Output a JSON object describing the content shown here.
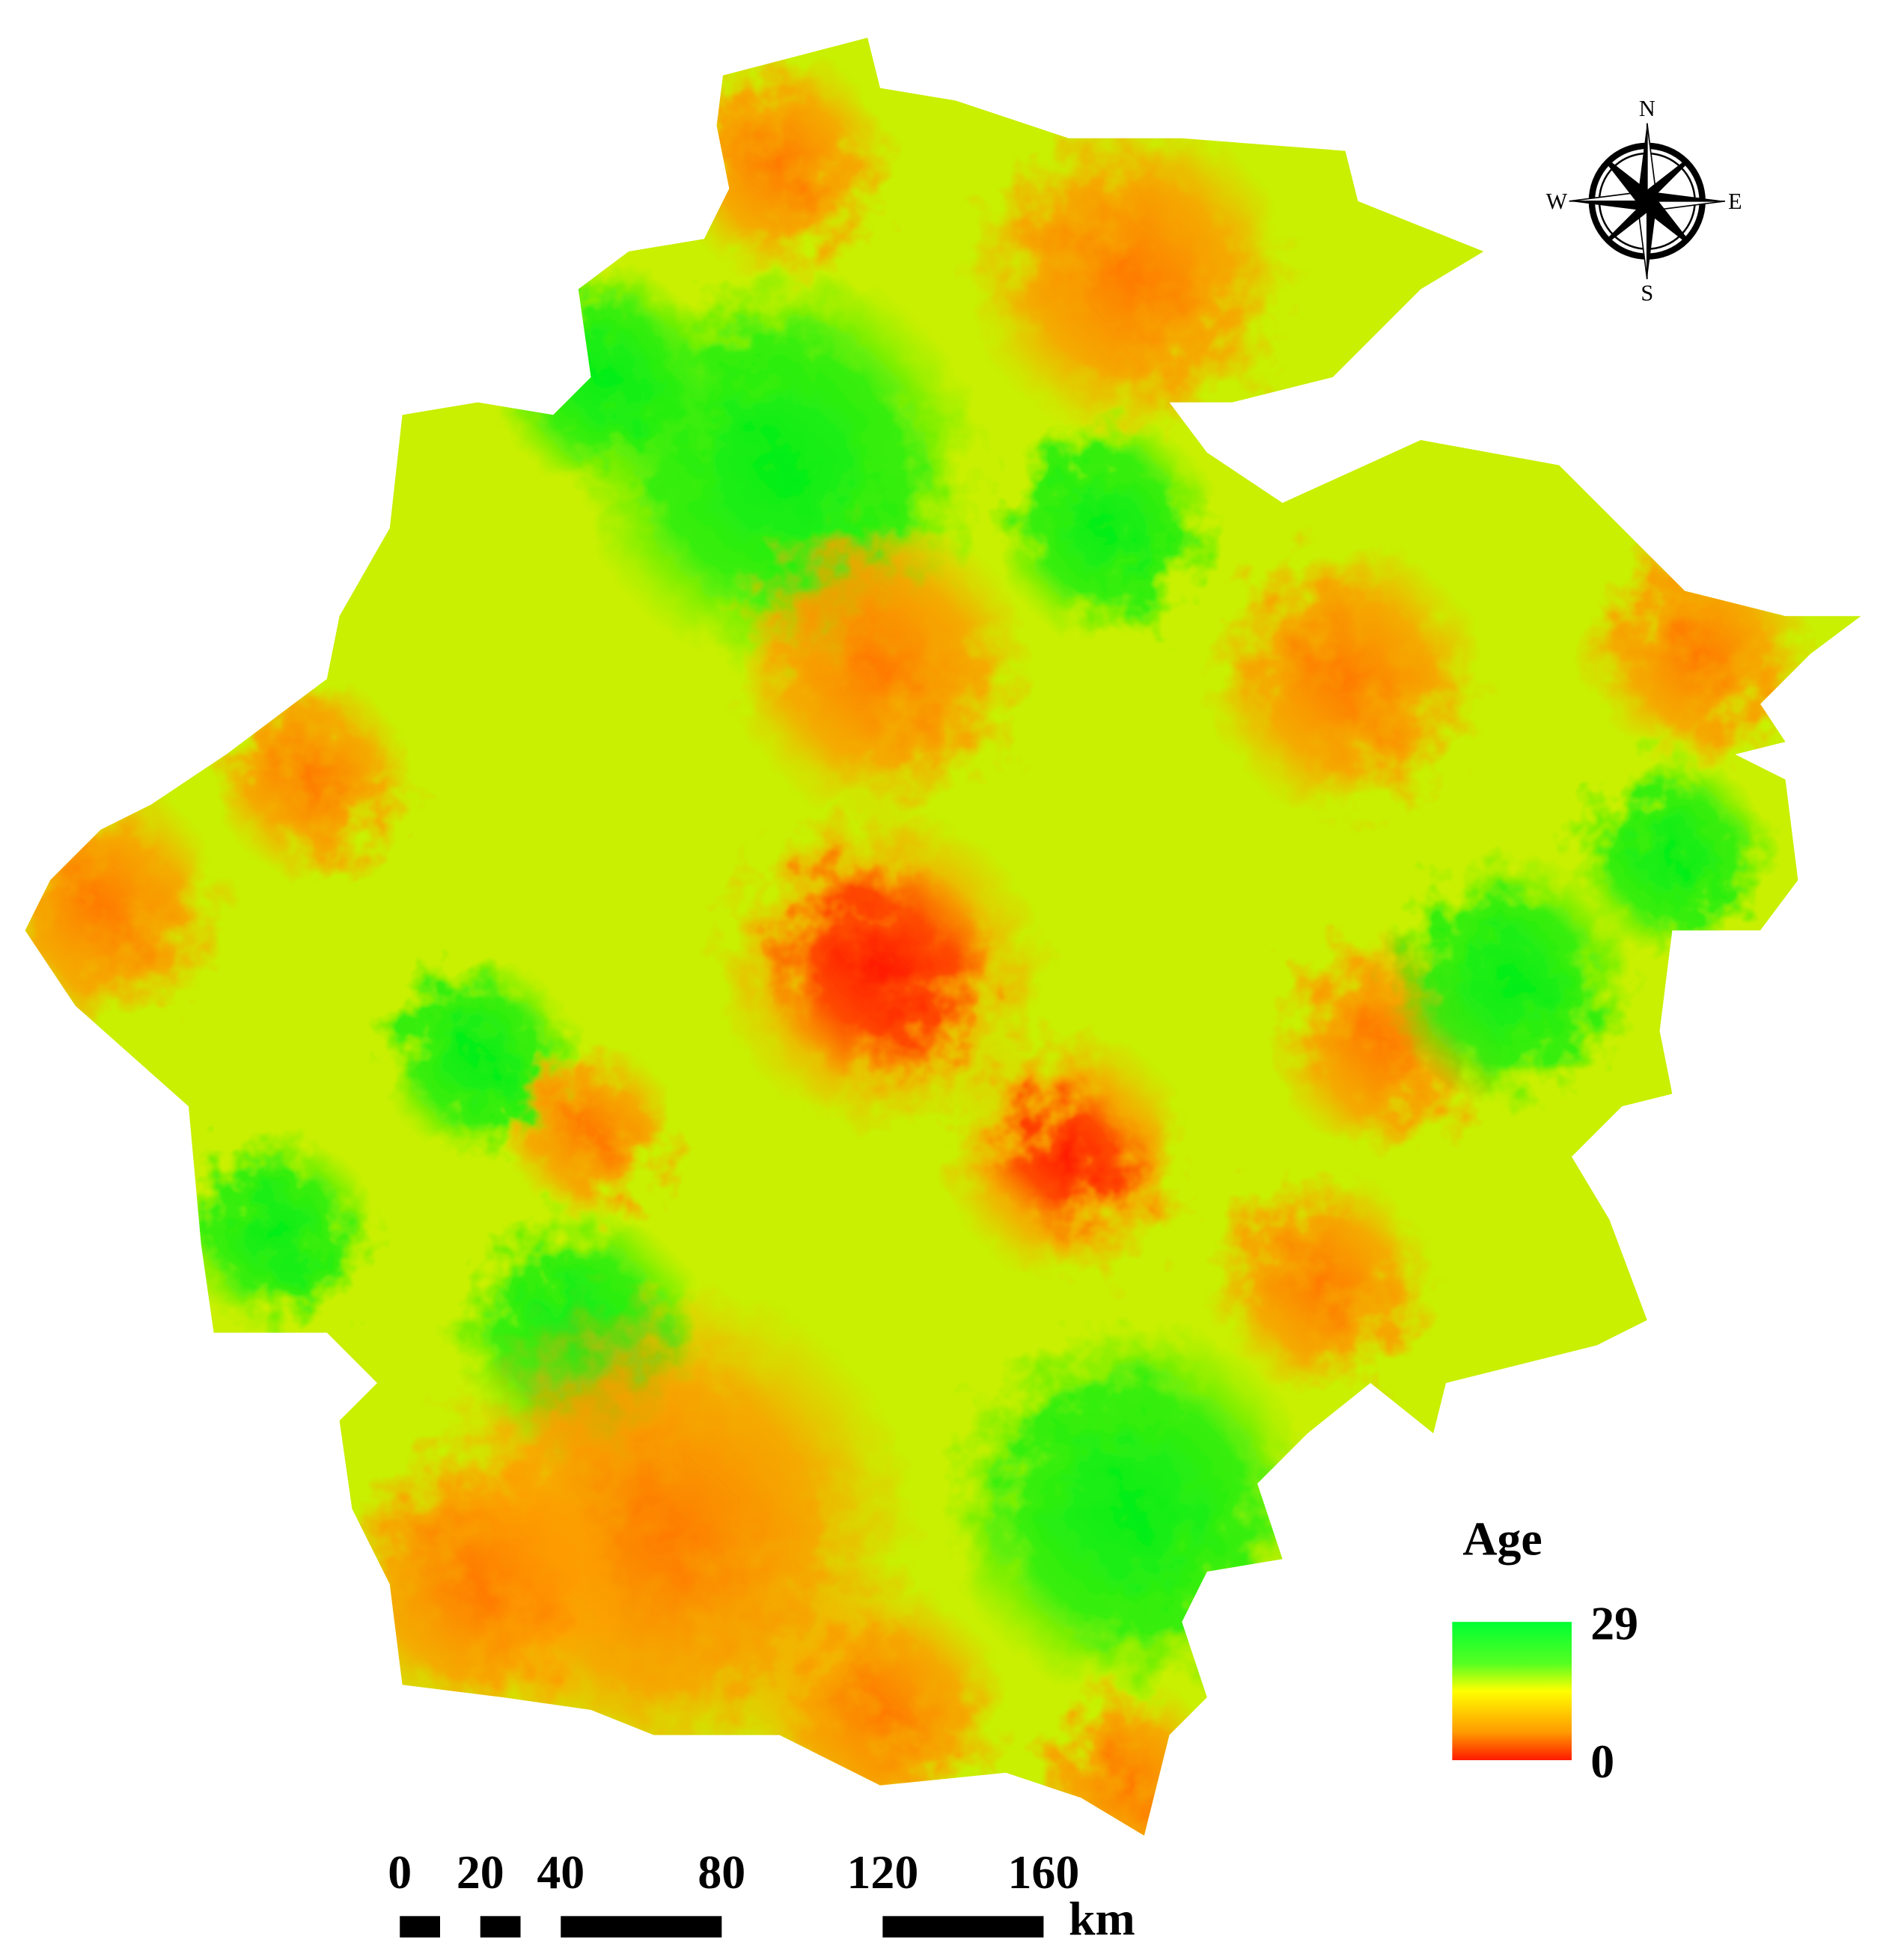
{
  "legend": {
    "title": "Age",
    "max": 29,
    "min": 0
  },
  "scale_bar": {
    "ticks": [
      0,
      20,
      40,
      80,
      120,
      160
    ],
    "unit": "km"
  },
  "compass": {
    "north": "N",
    "south": "S",
    "west": "W",
    "east": "E"
  }
}
